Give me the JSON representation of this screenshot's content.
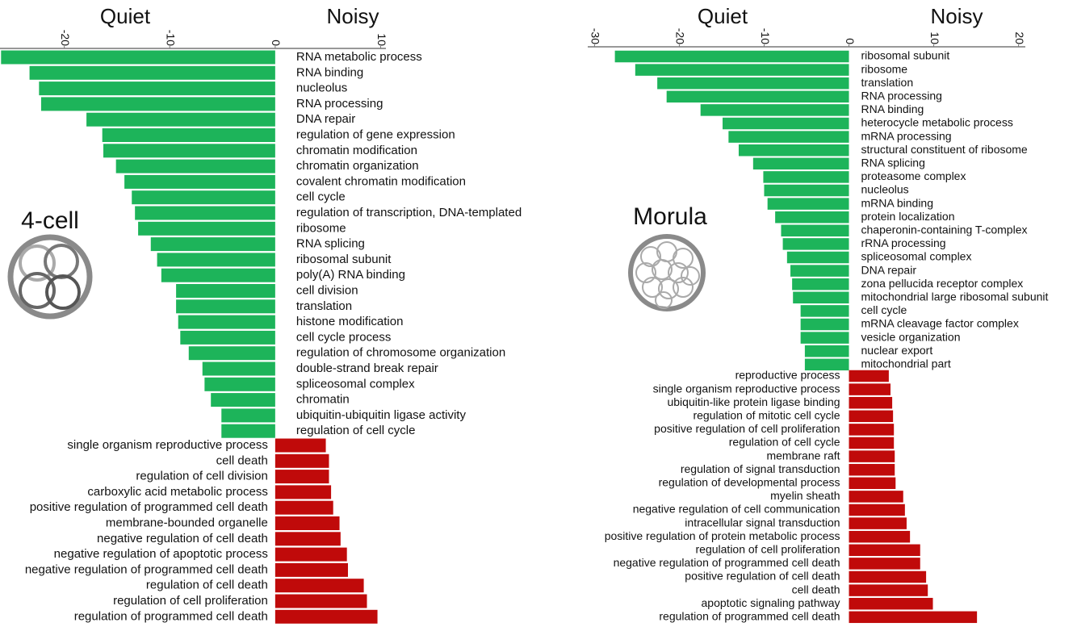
{
  "chart_data": [
    {
      "type": "bar",
      "orientation": "horizontal",
      "annotation": "4-cell",
      "xlim": [
        -26.1,
        10.5
      ],
      "xticks": [
        -20,
        -10,
        0,
        10
      ],
      "series": [
        {
          "name": "Quiet",
          "color": "#1db45a",
          "categories": [
            "RNA metabolic process",
            "RNA binding",
            "nucleolus",
            "RNA processing",
            "DNA repair",
            "regulation of gene expression",
            "chromatin modification",
            "chromatin organization",
            "covalent chromatin modification",
            "cell cycle",
            "regulation of transcription, DNA-templated",
            "ribosome",
            "RNA splicing",
            "ribosomal subunit",
            "poly(A) RNA binding",
            "cell division",
            "translation",
            "histone modification",
            "cell cycle process",
            "regulation of chromosome organization",
            "double-strand break repair",
            "spliceosomal complex",
            "chromatin",
            "ubiquitin-ubiquitin ligase activity",
            "regulation of cell cycle"
          ],
          "values": [
            -26,
            -23.3,
            -22.4,
            -22.2,
            -17.9,
            -16.4,
            -16.3,
            -15.1,
            -14.3,
            -13.6,
            -13.3,
            -13.0,
            -11.8,
            -11.2,
            -10.8,
            -9.4,
            -9.4,
            -9.2,
            -9.0,
            -8.2,
            -6.9,
            -6.7,
            -6.1,
            -5.1,
            -5.1
          ]
        },
        {
          "name": "Noisy",
          "color": "#c00a0a",
          "categories": [
            "single organism reproductive process",
            "cell death",
            "regulation of cell division",
            "carboxylic acid metabolic process",
            "positive regulation of programmed cell death",
            "membrane-bounded organelle",
            "negative regulation of cell death",
            "negative regulation of apoptotic process",
            "negative regulation of programmed cell death",
            "regulation of cell death",
            "regulation of cell proliferation",
            "regulation of programmed cell death"
          ],
          "values": [
            4.8,
            5.1,
            5.1,
            5.3,
            5.5,
            6.1,
            6.2,
            6.8,
            6.9,
            8.4,
            8.7,
            9.7
          ]
        }
      ]
    },
    {
      "type": "bar",
      "orientation": "horizontal",
      "annotation": "Morula",
      "xlim": [
        -30.8,
        20.8
      ],
      "xticks": [
        -30,
        -20,
        -10,
        0,
        10,
        20
      ],
      "series": [
        {
          "name": "Quiet",
          "color": "#1db45a",
          "categories": [
            "ribosomal subunit",
            "ribosome",
            "translation",
            "RNA processing",
            "RNA binding",
            "heterocycle metabolic process",
            "mRNA processing",
            "structural constituent of ribosome",
            "RNA splicing",
            "proteasome complex",
            "nucleolus",
            "mRNA binding",
            "protein localization",
            "chaperonin-containing T-complex",
            "rRNA processing",
            "spliceosomal complex",
            "DNA repair",
            "zona pellucida receptor complex",
            "mitochondrial large ribosomal subunit",
            "cell cycle",
            "mRNA cleavage factor complex",
            "vesicle organization",
            "nuclear export",
            "mitochondrial part"
          ],
          "values": [
            -27.6,
            -25.2,
            -22.6,
            -21.5,
            -17.5,
            -14.9,
            -14.2,
            -13.0,
            -11.3,
            -10.1,
            -10.0,
            -9.6,
            -8.7,
            -8.0,
            -7.8,
            -7.3,
            -6.9,
            -6.7,
            -6.6,
            -5.7,
            -5.7,
            -5.7,
            -5.2,
            -5.2
          ]
        },
        {
          "name": "Noisy",
          "color": "#c00a0a",
          "categories": [
            "reproductive process",
            "single organism reproductive process",
            "ubiquitin-like protein ligase binding",
            "regulation of mitotic cell cycle",
            "positive regulation of cell proliferation",
            "regulation of cell cycle",
            "membrane raft",
            "regulation of signal transduction",
            "regulation of developmental process",
            "myelin sheath",
            "negative regulation of cell communication",
            "intracellular signal transduction",
            "positive regulation of protein metabolic process",
            "regulation of cell proliferation",
            "negative regulation of programmed cell death",
            "positive regulation of cell death",
            "cell death",
            "apoptotic signaling pathway",
            "regulation of programmed cell death"
          ],
          "values": [
            4.7,
            4.9,
            5.1,
            5.2,
            5.3,
            5.3,
            5.4,
            5.4,
            5.5,
            6.4,
            6.6,
            6.8,
            7.2,
            8.4,
            8.4,
            9.1,
            9.3,
            9.9,
            15.1
          ]
        }
      ]
    }
  ]
}
